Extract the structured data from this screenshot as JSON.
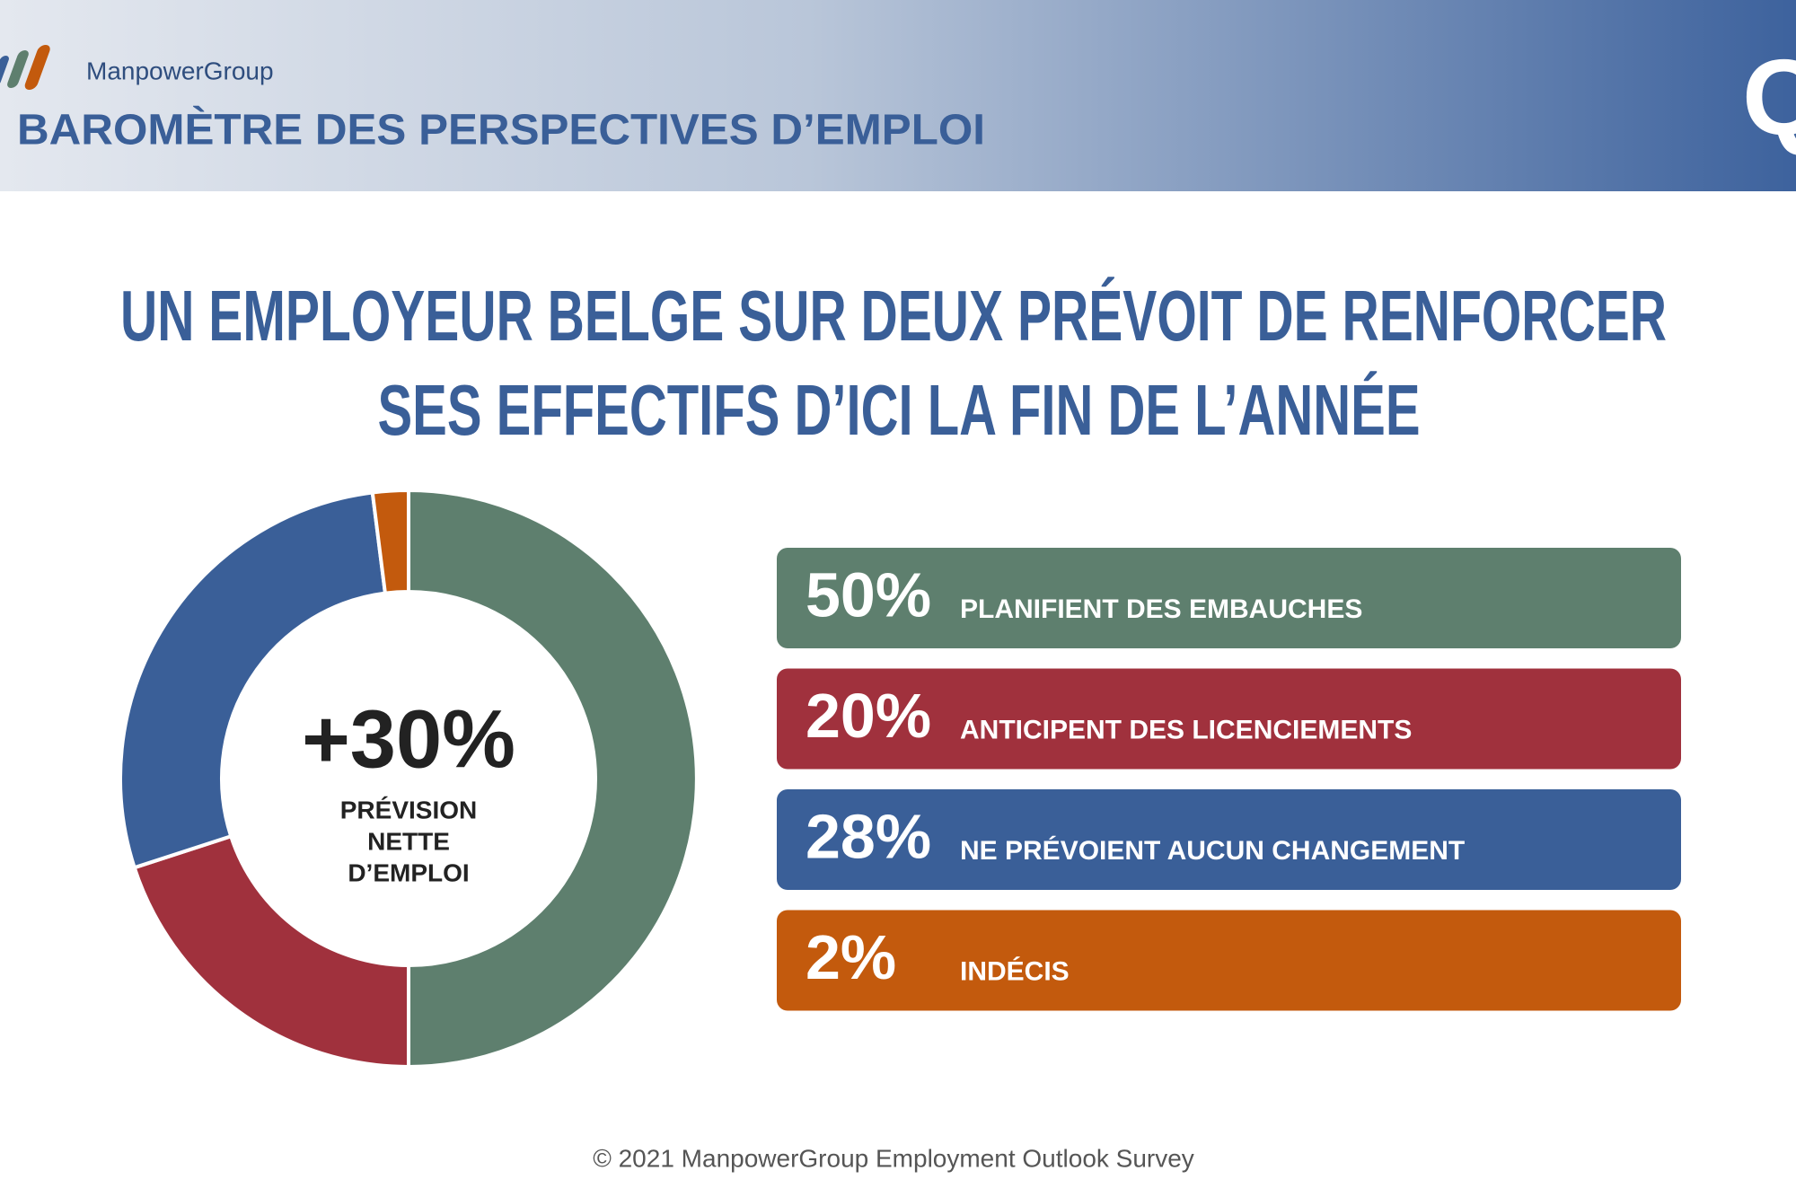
{
  "header": {
    "brand": "ManpowerGroup",
    "title": "BAROMÈTRE DES PERSPECTIVES D’EMPLOI",
    "corner": "Q"
  },
  "chart_data": {
    "type": "pie",
    "title": [
      "UN EMPLOYEUR BELGE SUR DEUX PRÉVOIT DE RENFORCER",
      "SES EFFECTIFS D’ICI LA FIN DE L’ANNÉE"
    ],
    "categories": [
      "PLANIFIENT DES EMBAUCHES",
      "ANTICIPENT DES LICENCIEMENTS",
      "NE PRÉVOIENT AUCUN CHANGEMENT",
      "INDÉCIS"
    ],
    "values": [
      50,
      20,
      28,
      2
    ],
    "value_labels": [
      "50%",
      "20%",
      "28%",
      "2%"
    ],
    "colors": [
      "#5e7f6e",
      "#a0313d",
      "#3a5f98",
      "#c35a0d"
    ],
    "center": {
      "value": 30,
      "label": "+30%",
      "caption": [
        "PRÉVISION",
        "NETTE",
        "D’EMPLOI"
      ]
    }
  },
  "footer": "© 2021 ManpowerGroup Employment Outlook Survey"
}
